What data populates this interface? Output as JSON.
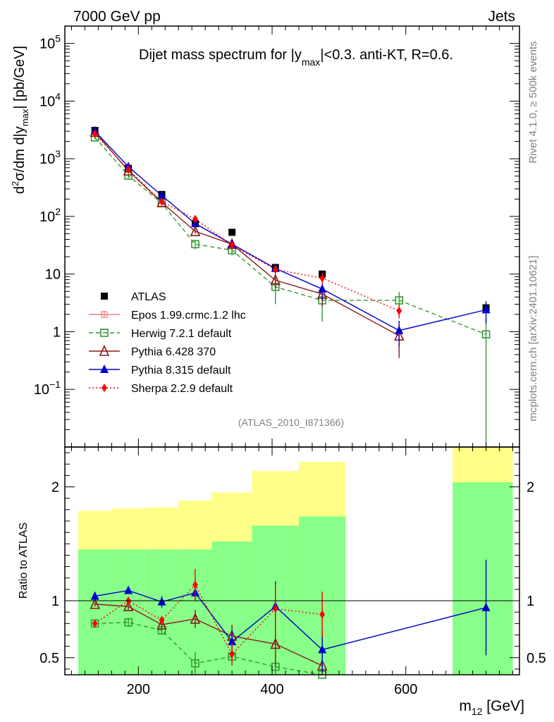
{
  "header": {
    "left": "7000 GeV pp",
    "right": "Jets"
  },
  "side_labels": {
    "top": "Rivet 4.1.0, ≥ 500k events",
    "bottom": "mcplots.cern.ch [arXiv:2401.10621]"
  },
  "watermark": "(ATLAS_2010_I871366)",
  "chart_data": {
    "type": "scatter",
    "title_parts": {
      "pre": "Dijet mass spectrum for |y",
      "sub": "max",
      "post": "|<0.3.  anti-KT, R=0.6."
    },
    "ylabel": "d²σ/dm d|y_max| [pb/GeV]",
    "xlabel": "m12 [GeV]",
    "ratio_ylabel": "Ratio to ATLAS",
    "xlim": [
      90,
      770
    ],
    "ylim_log": [
      0.01,
      200000
    ],
    "ratio_ylim": [
      0.35,
      2.35
    ],
    "x_ticks": [
      {
        "v": 200,
        "label": "200"
      },
      {
        "v": 400,
        "label": "400"
      },
      {
        "v": 600,
        "label": "600"
      }
    ],
    "y_ticks": [
      {
        "v": 100000,
        "base": "10",
        "exp": "5"
      },
      {
        "v": 10000,
        "base": "10",
        "exp": "4"
      },
      {
        "v": 1000,
        "base": "10",
        "exp": "3"
      },
      {
        "v": 100,
        "base": "10",
        "exp": "2"
      },
      {
        "v": 10,
        "base": "10",
        "exp": ""
      },
      {
        "v": 1,
        "base": "1",
        "exp": ""
      },
      {
        "v": 0.1,
        "base": "10",
        "exp": "−1"
      }
    ],
    "ratio_ticks": [
      {
        "v": 2,
        "label": "2"
      },
      {
        "v": 1,
        "label": "1"
      },
      {
        "v": 0.5,
        "label": "0.5"
      }
    ],
    "bins": [
      [
        110,
        160
      ],
      [
        160,
        210
      ],
      [
        210,
        260
      ],
      [
        260,
        310
      ],
      [
        310,
        370
      ],
      [
        370,
        440
      ],
      [
        440,
        510
      ],
      [
        510,
        670
      ],
      [
        670,
        760
      ]
    ],
    "band_green": [
      [
        0.32,
        1.45
      ],
      [
        0.32,
        1.45
      ],
      [
        0.32,
        1.45
      ],
      [
        0.32,
        1.45
      ],
      [
        0.32,
        1.52
      ],
      [
        0.32,
        1.66
      ],
      [
        0.32,
        1.74
      ],
      null,
      [
        0.32,
        2.04
      ]
    ],
    "band_yellow": [
      [
        0.67,
        1.79
      ],
      [
        0.66,
        1.81
      ],
      [
        0.65,
        1.82
      ],
      [
        0.59,
        1.88
      ],
      [
        0.58,
        1.95
      ],
      [
        0.32,
        2.14
      ],
      [
        0.32,
        2.22
      ],
      null,
      [
        0.32,
        2.38
      ]
    ],
    "series": [
      {
        "name": "ATLAS",
        "color": "#000000",
        "marker": "square-filled",
        "line": "none",
        "x": [
          135,
          185,
          235,
          285,
          340,
          405,
          475,
          720
        ],
        "y": [
          3100,
          680,
          240,
          75,
          53,
          13,
          10,
          2.6
        ],
        "err": [
          0,
          0,
          0,
          0,
          0,
          0,
          0,
          0.3
        ]
      },
      {
        "name": "Epos 1.99.crmc.1.2 lhc",
        "color": "#f08080",
        "marker": "cross-square",
        "line": "solid",
        "x": [],
        "y": [],
        "err": []
      },
      {
        "name": "Herwig 7.2.1 default",
        "color": "#339933",
        "marker": "square-open",
        "line": "dashed",
        "x": [
          135,
          185,
          235,
          285,
          340,
          405,
          475,
          590,
          720
        ],
        "y": [
          2350,
          510,
          170,
          33,
          26,
          6,
          3.5,
          3.5,
          0.9
        ],
        "err": [
          200,
          50,
          20,
          6,
          5,
          3,
          2,
          1.4,
          0.9
        ],
        "ratio": [
          0.8,
          0.81,
          0.74,
          0.45,
          0.51,
          0.42,
          0.35,
          null,
          null
        ],
        "ratio_err": [
          0.02,
          0.04,
          0.04,
          0.1,
          0.05,
          0.1,
          0.1,
          null,
          null
        ]
      },
      {
        "name": "Pythia 6.428 370",
        "color": "#8b1a1a",
        "marker": "triangle-open",
        "line": "solid",
        "x": [
          135,
          185,
          235,
          285,
          340,
          405,
          475,
          590
        ],
        "y": [
          2900,
          620,
          175,
          55,
          33,
          7.8,
          4.5,
          0.85
        ],
        "err": [
          150,
          30,
          10,
          5,
          3,
          2.2,
          1.8,
          0.5
        ],
        "ratio": [
          0.97,
          0.95,
          0.79,
          0.84,
          0.69,
          0.62,
          0.43,
          null
        ],
        "ratio_err": [
          0.02,
          0.03,
          0.03,
          0.08,
          0.1,
          0.2,
          0.3,
          null
        ]
      },
      {
        "name": "Pythia 8.315 default",
        "color": "#0000cc",
        "marker": "triangle-filled",
        "line": "solid",
        "x": [
          135,
          185,
          235,
          285,
          340,
          405,
          475,
          590,
          720
        ],
        "y": [
          3000,
          730,
          230,
          75,
          33,
          12.5,
          5.5,
          1.05,
          2.4
        ],
        "err": [
          150,
          40,
          15,
          6,
          3,
          2,
          2,
          0.5,
          1
        ],
        "ratio": [
          1.04,
          1.09,
          0.99,
          1.07,
          0.64,
          0.95,
          0.57,
          null,
          0.94
        ],
        "ratio_err": [
          0.01,
          0.02,
          0.05,
          0.06,
          0.1,
          0.22,
          0.2,
          null,
          0.42
        ]
      },
      {
        "name": "Sherpa 2.2.9 default",
        "color": "#ff0000",
        "marker": "diamond-filled",
        "line": "dotted",
        "x": [
          135,
          185,
          235,
          285,
          340,
          405,
          475,
          590
        ],
        "y": [
          2700,
          650,
          180,
          90,
          32,
          12,
          8.5,
          2.3
        ],
        "err": [
          100,
          30,
          10,
          8,
          3,
          2,
          2,
          0.6
        ],
        "ratio": [
          0.8,
          1.0,
          0.83,
          1.14,
          0.53,
          0.93,
          0.88,
          null
        ],
        "ratio_err": [
          0.02,
          0.03,
          0.03,
          0.14,
          0.1,
          0.22,
          0.2,
          null
        ]
      }
    ]
  }
}
